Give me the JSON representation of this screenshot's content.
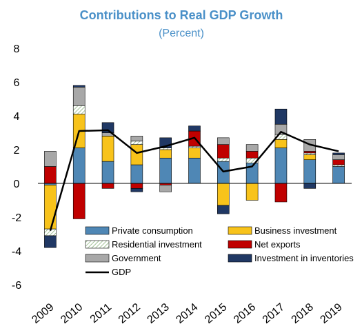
{
  "chart_data": {
    "type": "bar",
    "stacked": true,
    "title": "Contributions to Real GDP Growth",
    "subtitle": "(Percent)",
    "xlabel": "",
    "ylabel": "",
    "ylim": [
      -6,
      8
    ],
    "yticks": [
      8,
      6,
      4,
      2,
      0,
      -2,
      -4,
      -6
    ],
    "grid": false,
    "legend_position": "bottom-center-inside",
    "categories": [
      "2009",
      "2010",
      "2011",
      "2012",
      "2013",
      "2014",
      "2015",
      "2016",
      "2017",
      "2018",
      "2019"
    ],
    "series": [
      {
        "name": "Private consumption",
        "color": "#4f87b5",
        "pattern": "solid",
        "values": [
          -0.1,
          2.1,
          1.3,
          1.1,
          1.5,
          1.5,
          1.3,
          1.2,
          2.1,
          1.4,
          1.0
        ]
      },
      {
        "name": "Business investment",
        "color": "#f8c31b",
        "pattern": "solid",
        "values": [
          -2.6,
          2.0,
          1.5,
          1.2,
          0.5,
          0.6,
          -1.3,
          -1.0,
          0.5,
          0.3,
          0.0
        ]
      },
      {
        "name": "Residential investment",
        "color": "#ffffff",
        "pattern": "hatch",
        "values": [
          -0.4,
          0.5,
          0.0,
          0.2,
          0.1,
          0.1,
          0.2,
          0.3,
          0.3,
          0.1,
          0.1
        ]
      },
      {
        "name": "Net exports",
        "color": "#c00000",
        "pattern": "solid",
        "values": [
          1.0,
          -2.1,
          -0.3,
          -0.3,
          -0.1,
          0.9,
          0.8,
          0.4,
          -1.1,
          0.1,
          0.3
        ]
      },
      {
        "name": "Government",
        "color": "#a8a8a8",
        "pattern": "solid",
        "values": [
          0.9,
          1.1,
          0.2,
          0.3,
          -0.4,
          0.0,
          0.4,
          0.4,
          0.6,
          0.7,
          0.3
        ]
      },
      {
        "name": "Investment in inventories",
        "color": "#203864",
        "pattern": "solid",
        "values": [
          -0.7,
          0.1,
          0.6,
          -0.2,
          0.6,
          0.3,
          -0.5,
          0.0,
          0.9,
          -0.3,
          0.1
        ]
      }
    ],
    "line": {
      "name": "GDP",
      "color": "#000000",
      "values": [
        -2.8,
        3.1,
        3.15,
        1.8,
        2.2,
        2.7,
        0.7,
        1.0,
        3.05,
        2.3,
        1.9
      ]
    }
  }
}
